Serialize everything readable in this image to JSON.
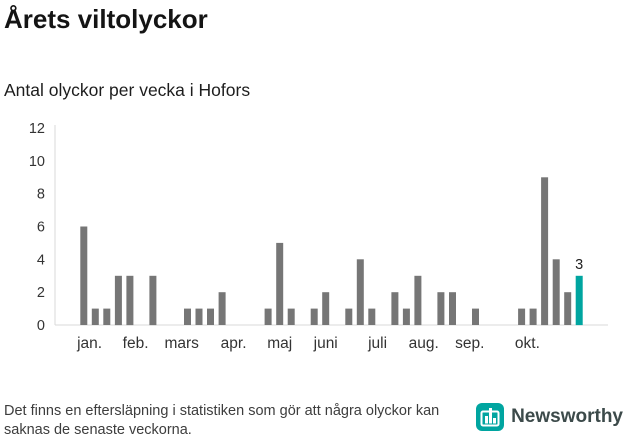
{
  "header": {
    "title": "Årets viltolyckor",
    "subtitle": "Antal olyckor per vecka i Hofors"
  },
  "chart_data": {
    "type": "bar",
    "title": "Årets viltolyckor",
    "subtitle": "Antal olyckor per vecka i Hofors",
    "ylabel": "Antal olyckor per vecka",
    "xlabel": "",
    "ylim": [
      0,
      12
    ],
    "yticks": [
      0,
      2,
      4,
      6,
      8,
      10,
      12
    ],
    "grid": false,
    "values": [
      0,
      0,
      6,
      1,
      1,
      3,
      3,
      0,
      3,
      0,
      0,
      1,
      1,
      1,
      2,
      0,
      0,
      0,
      1,
      5,
      1,
      0,
      1,
      2,
      0,
      1,
      4,
      1,
      0,
      2,
      1,
      3,
      0,
      2,
      2,
      0,
      1,
      0,
      0,
      0,
      1,
      1,
      9,
      4,
      2,
      3,
      0,
      0
    ],
    "highlight_index": 45,
    "highlight_value_label": "3",
    "bar_color": "#767676",
    "highlight_color": "#00A5A0",
    "axis_color": "#d8d8d8",
    "tick_label_color": "#333333",
    "month_ticks": [
      {
        "label": "jan.",
        "week": 2.5
      },
      {
        "label": "feb.",
        "week": 6.5
      },
      {
        "label": "mars",
        "week": 10.5
      },
      {
        "label": "apr.",
        "week": 15
      },
      {
        "label": "maj",
        "week": 19
      },
      {
        "label": "juni",
        "week": 23
      },
      {
        "label": "juli",
        "week": 27.5
      },
      {
        "label": "aug.",
        "week": 31.5
      },
      {
        "label": "sep.",
        "week": 35.5
      },
      {
        "label": "okt.",
        "week": 40.5
      }
    ]
  },
  "footer": {
    "note": "Det finns en eftersläpning i statistiken som gör att några olyckor kan saknas de senaste veckorna.",
    "brand": "Newsworthy",
    "brand_color": "#00A5A0"
  }
}
